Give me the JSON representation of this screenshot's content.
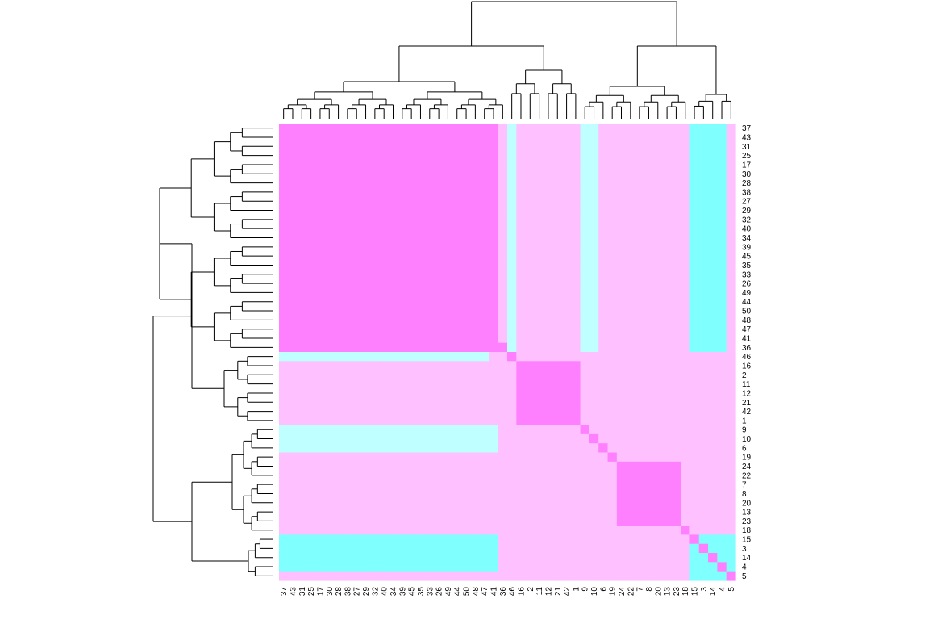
{
  "chart_data": {
    "type": "heatmap",
    "title": "",
    "xlabel": "",
    "ylabel": "",
    "colors": {
      "strong_magenta": "#ff80ff",
      "light_pink": "#ffc0ff",
      "light_cyan": "#c0ffff",
      "strong_cyan": "#80ffff",
      "dendrogram": "#000000"
    },
    "row_labels": [
      "37",
      "43",
      "31",
      "25",
      "17",
      "30",
      "28",
      "38",
      "27",
      "29",
      "32",
      "40",
      "34",
      "39",
      "45",
      "35",
      "33",
      "26",
      "49",
      "44",
      "50",
      "48",
      "47",
      "41",
      "36",
      "46",
      "16",
      "2",
      "11",
      "12",
      "21",
      "42",
      "1",
      "9",
      "10",
      "6",
      "19",
      "24",
      "22",
      "7",
      "8",
      "20",
      "13",
      "23",
      "18",
      "15",
      "3",
      "14",
      "4",
      "5"
    ],
    "col_labels": [
      "37",
      "43",
      "31",
      "25",
      "17",
      "30",
      "28",
      "38",
      "27",
      "29",
      "32",
      "40",
      "34",
      "39",
      "45",
      "35",
      "33",
      "26",
      "49",
      "44",
      "50",
      "48",
      "47",
      "41",
      "36",
      "46",
      "16",
      "2",
      "11",
      "12",
      "21",
      "42",
      "1",
      "9",
      "10",
      "6",
      "19",
      "24",
      "22",
      "7",
      "8",
      "20",
      "13",
      "23",
      "18",
      "15",
      "3",
      "14",
      "4",
      "5"
    ],
    "cluster_blocks": [
      {
        "rows": [
          0,
          24
        ],
        "cols": [
          0,
          23
        ],
        "level": 3
      },
      {
        "rows": [
          26,
          32
        ],
        "cols": [
          26,
          32
        ],
        "level": 3
      },
      {
        "rows": [
          45,
          49
        ],
        "cols": [
          45,
          49
        ],
        "level": 0
      },
      {
        "rows": [
          0,
          24
        ],
        "cols": [
          25,
          25
        ],
        "level": 1
      },
      {
        "rows": [
          0,
          24
        ],
        "cols": [
          33,
          34
        ],
        "level": 1
      },
      {
        "rows": [
          0,
          24
        ],
        "cols": [
          45,
          48
        ],
        "level": 0
      },
      {
        "rows": [
          25,
          25
        ],
        "cols": [
          0,
          22
        ],
        "level": 1
      },
      {
        "rows": [
          33,
          35
        ],
        "cols": [
          0,
          23
        ],
        "level": 1
      },
      {
        "rows": [
          45,
          48
        ],
        "cols": [
          0,
          23
        ],
        "level": 0
      },
      {
        "rows": [
          37,
          43
        ],
        "cols": [
          37,
          43
        ],
        "level": 3
      }
    ]
  }
}
